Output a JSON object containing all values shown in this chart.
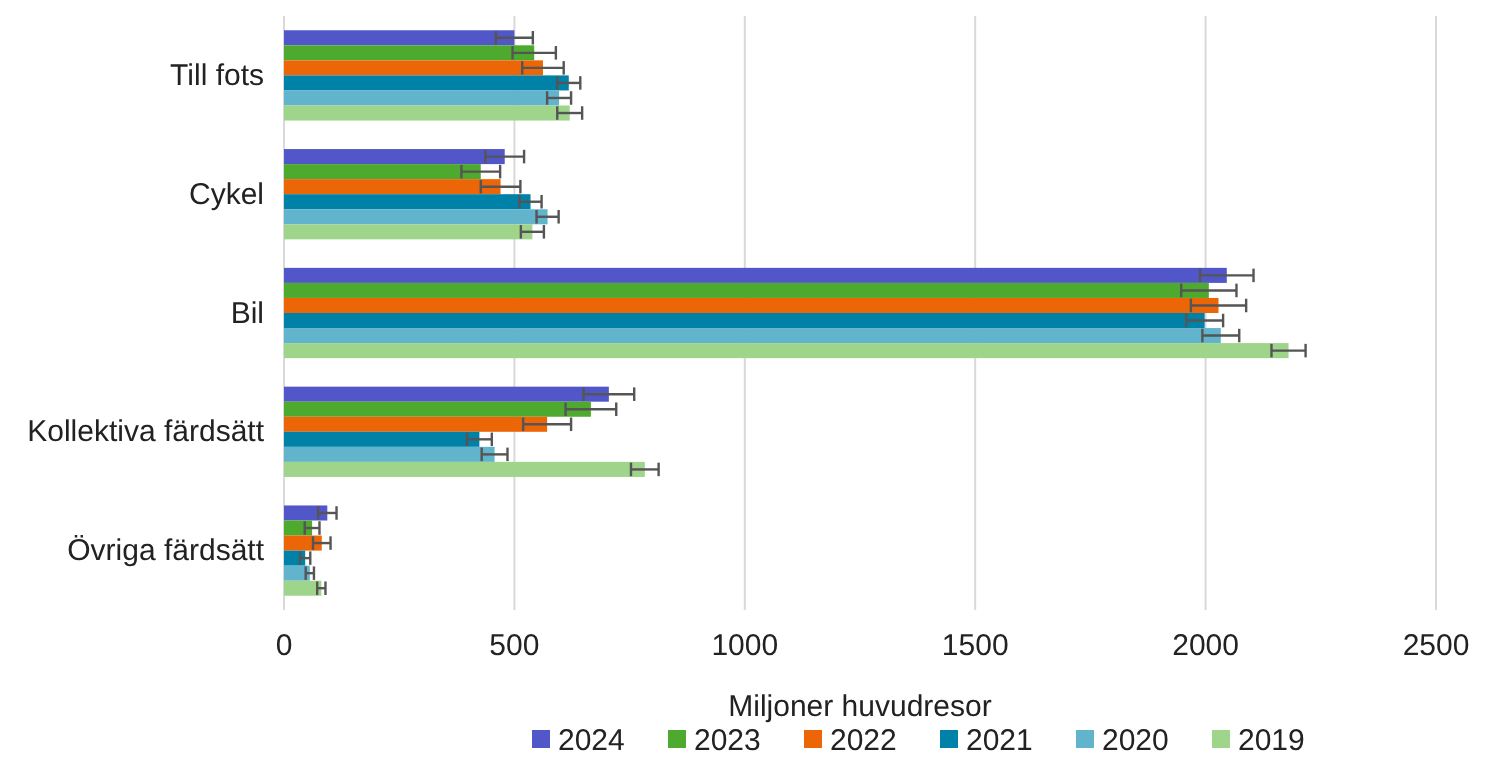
{
  "chart_data": {
    "type": "bar",
    "orientation": "horizontal",
    "xlabel": "Miljoner huvudresor",
    "categories": [
      "Till fots",
      "Cykel",
      "Bil",
      "Kollektiva färdsätt",
      "Övriga färdsätt"
    ],
    "series": [
      {
        "name": "2024",
        "color": "#5157c8",
        "values": [
          500,
          479,
          2046,
          705,
          94
        ],
        "errors": [
          40,
          42,
          58,
          55,
          20
        ]
      },
      {
        "name": "2023",
        "color": "#4eaa2e",
        "values": [
          543,
          427,
          2007,
          666,
          61
        ],
        "errors": [
          47,
          42,
          60,
          55,
          16
        ]
      },
      {
        "name": "2022",
        "color": "#ec6608",
        "values": [
          562,
          470,
          2028,
          571,
          82
        ],
        "errors": [
          45,
          43,
          60,
          52,
          19
        ]
      },
      {
        "name": "2021",
        "color": "#0081a8",
        "values": [
          618,
          535,
          1998,
          424,
          46
        ],
        "errors": [
          25,
          24,
          40,
          27,
          11
        ]
      },
      {
        "name": "2020",
        "color": "#62b4cc",
        "values": [
          597,
          572,
          2033,
          457,
          56
        ],
        "errors": [
          26,
          24,
          40,
          28,
          9
        ]
      },
      {
        "name": "2019",
        "color": "#9fd48b",
        "values": [
          620,
          539,
          2180,
          783,
          81
        ],
        "errors": [
          27,
          25,
          37,
          30,
          9
        ]
      }
    ],
    "xlim": [
      0,
      2500
    ],
    "xticks": [
      0,
      500,
      1000,
      1500,
      2000,
      2500
    ],
    "grid": "x",
    "legend": "bottom"
  }
}
